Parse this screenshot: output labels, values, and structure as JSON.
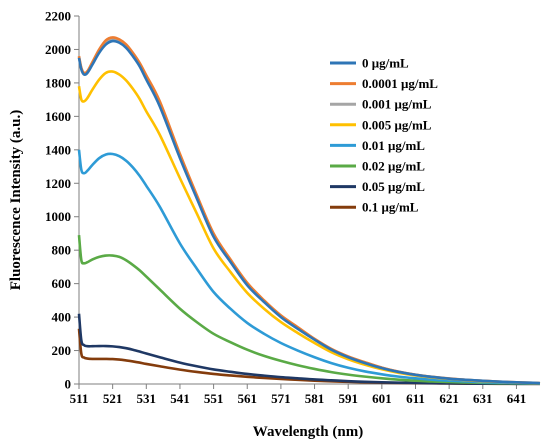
{
  "chart_data": {
    "type": "line",
    "title": "",
    "xlabel": "Wavelength  (nm)",
    "ylabel": "Fluorescence Intensity  (a.u.)",
    "xlim": [
      511,
      648
    ],
    "ylim": [
      0,
      2200
    ],
    "xticks": [
      511,
      521,
      531,
      541,
      551,
      561,
      571,
      581,
      591,
      601,
      611,
      621,
      631,
      641
    ],
    "yticks": [
      0,
      200,
      400,
      600,
      800,
      1000,
      1200,
      1400,
      1600,
      1800,
      2000,
      2200
    ],
    "grid": false,
    "legend_position": "top-right",
    "series": [
      {
        "name": "0 μg/mL",
        "color": "#2E75B6",
        "x": [
          511,
          511.7,
          512.5,
          513.5,
          515,
          517,
          519,
          521,
          523,
          525,
          527,
          529,
          531,
          535,
          541,
          546,
          551,
          556,
          561,
          566,
          571,
          576,
          581,
          586,
          591,
          596,
          601,
          606,
          611,
          616,
          621,
          626,
          631,
          636,
          641,
          646,
          648
        ],
        "y": [
          1950,
          1880,
          1850,
          1860,
          1910,
          1980,
          2030,
          2050,
          2040,
          2010,
          1960,
          1900,
          1820,
          1660,
          1350,
          1110,
          880,
          730,
          590,
          490,
          400,
          330,
          265,
          205,
          160,
          125,
          95,
          72,
          55,
          42,
          32,
          25,
          19,
          14,
          10,
          7,
          5
        ]
      },
      {
        "name": "0.0001 μg/mL",
        "color": "#ED7D31",
        "x": [
          511,
          511.7,
          512.5,
          513.5,
          515,
          517,
          519,
          521,
          523,
          525,
          527,
          529,
          531,
          535,
          541,
          546,
          551,
          556,
          561,
          566,
          571,
          576,
          581,
          586,
          591,
          596,
          601,
          606,
          611,
          616,
          621,
          626,
          631,
          636,
          641,
          646,
          648
        ],
        "y": [
          1960,
          1890,
          1860,
          1870,
          1925,
          2000,
          2055,
          2072,
          2060,
          2030,
          1980,
          1920,
          1845,
          1690,
          1375,
          1130,
          900,
          745,
          605,
          500,
          410,
          340,
          270,
          210,
          165,
          130,
          98,
          74,
          56,
          43,
          33,
          25,
          19,
          14,
          10,
          7,
          5
        ]
      },
      {
        "name": "0.001 μg/mL",
        "color": "#A5A5A5",
        "x": [
          511,
          511.7,
          512.5,
          513.5,
          515,
          517,
          519,
          521,
          523,
          525,
          527,
          529,
          531,
          535,
          541,
          546,
          551,
          556,
          561,
          566,
          571,
          576,
          581,
          586,
          591,
          596,
          601,
          606,
          611,
          616,
          621,
          626,
          631,
          636,
          641,
          646,
          648
        ],
        "y": [
          1955,
          1885,
          1855,
          1865,
          1918,
          1990,
          2045,
          2062,
          2050,
          2020,
          1970,
          1910,
          1835,
          1680,
          1365,
          1120,
          890,
          738,
          598,
          495,
          405,
          335,
          268,
          208,
          163,
          128,
          97,
          73,
          55,
          42,
          32,
          25,
          19,
          14,
          10,
          7,
          5
        ]
      },
      {
        "name": "0.005 μg/mL",
        "color": "#FFC000",
        "x": [
          511,
          511.7,
          512.5,
          513.5,
          515,
          517,
          519,
          521,
          523,
          525,
          527,
          529,
          531,
          535,
          541,
          546,
          551,
          556,
          561,
          566,
          571,
          576,
          581,
          586,
          591,
          596,
          601,
          606,
          611,
          616,
          621,
          626,
          631,
          636,
          641,
          646,
          648
        ],
        "y": [
          1780,
          1700,
          1690,
          1710,
          1760,
          1820,
          1860,
          1868,
          1850,
          1815,
          1765,
          1705,
          1630,
          1490,
          1230,
          1020,
          810,
          670,
          545,
          450,
          370,
          305,
          245,
          190,
          148,
          115,
          88,
          67,
          51,
          39,
          30,
          23,
          17,
          13,
          9,
          6,
          4
        ]
      },
      {
        "name": "0.01 μg/mL",
        "color": "#2E9BD6",
        "x": [
          511,
          511.7,
          512.5,
          513.5,
          515,
          517,
          519,
          521,
          523,
          525,
          527,
          529,
          531,
          535,
          541,
          546,
          551,
          556,
          561,
          566,
          571,
          576,
          581,
          586,
          591,
          596,
          601,
          606,
          611,
          616,
          621,
          626,
          631,
          636,
          641,
          646,
          648
        ],
        "y": [
          1400,
          1280,
          1260,
          1275,
          1310,
          1350,
          1372,
          1375,
          1362,
          1335,
          1295,
          1245,
          1185,
          1060,
          840,
          690,
          550,
          450,
          365,
          300,
          245,
          200,
          160,
          125,
          97,
          75,
          58,
          44,
          34,
          26,
          20,
          15,
          11,
          8,
          6,
          4,
          3
        ]
      },
      {
        "name": "0.02 μg/mL",
        "color": "#5AAA46",
        "x": [
          511,
          511.7,
          512.5,
          513.5,
          515,
          517,
          519,
          521,
          523,
          525,
          527,
          529,
          531,
          535,
          541,
          546,
          551,
          556,
          561,
          566,
          571,
          576,
          581,
          586,
          591,
          596,
          601,
          606,
          611,
          616,
          621,
          626,
          631,
          636,
          641,
          646,
          648
        ],
        "y": [
          890,
          740,
          722,
          728,
          745,
          760,
          768,
          768,
          760,
          740,
          712,
          680,
          642,
          565,
          450,
          370,
          300,
          250,
          205,
          168,
          138,
          112,
          90,
          71,
          56,
          44,
          34,
          26,
          20,
          15,
          12,
          9,
          7,
          5,
          4,
          3,
          2
        ]
      },
      {
        "name": "0.05 μg/mL",
        "color": "#1F3864",
        "x": [
          511,
          511.7,
          512.5,
          513.5,
          515,
          517,
          519,
          521,
          523,
          525,
          527,
          529,
          531,
          535,
          541,
          546,
          551,
          556,
          561,
          566,
          571,
          576,
          581,
          586,
          591,
          596,
          601,
          606,
          611,
          616,
          621,
          626,
          631,
          636,
          641,
          646,
          648
        ],
        "y": [
          420,
          260,
          232,
          226,
          226,
          227,
          227,
          225,
          221,
          214,
          205,
          194,
          182,
          160,
          128,
          106,
          87,
          73,
          60,
          50,
          41,
          34,
          27,
          22,
          17,
          13,
          10,
          8,
          6,
          5,
          4,
          3,
          2,
          2,
          1,
          1,
          1
        ]
      },
      {
        "name": "0.1 μg/mL",
        "color": "#843C0C",
        "x": [
          511,
          511.7,
          512.5,
          513.5,
          515,
          517,
          519,
          521,
          523,
          525,
          527,
          529,
          531,
          535,
          541,
          546,
          551,
          556,
          561,
          566,
          571,
          576,
          581,
          586,
          591,
          596,
          601,
          606,
          611,
          616,
          621,
          626,
          631,
          636,
          641,
          646,
          648
        ],
        "y": [
          330,
          180,
          158,
          152,
          150,
          150,
          150,
          149,
          146,
          141,
          135,
          128,
          120,
          106,
          86,
          72,
          60,
          51,
          43,
          36,
          30,
          25,
          20,
          16,
          13,
          10,
          8,
          6,
          5,
          4,
          3,
          2,
          2,
          1,
          1,
          1,
          1
        ]
      }
    ]
  }
}
